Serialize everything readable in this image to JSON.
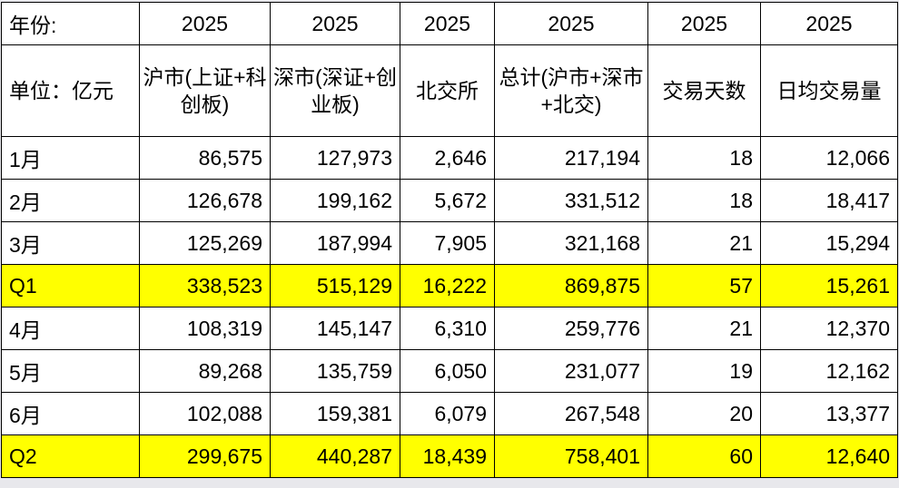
{
  "header": {
    "year_label": "年份:",
    "years": [
      "2025",
      "2025",
      "2025",
      "2025",
      "2025",
      "2025"
    ],
    "unit_label": "单位：亿元",
    "columns": [
      "沪市(上证+科创板)",
      "深市(深证+创业板)",
      "北交所",
      "总计(沪市+深市+北交)",
      "交易天数",
      "日均交易量"
    ]
  },
  "rows": [
    {
      "label": "1月",
      "values": [
        "86,575",
        "127,973",
        "2,646",
        "217,194",
        "18",
        "12,066"
      ],
      "highlight": false
    },
    {
      "label": "2月",
      "values": [
        "126,678",
        "199,162",
        "5,672",
        "331,512",
        "18",
        "18,417"
      ],
      "highlight": false
    },
    {
      "label": "3月",
      "values": [
        "125,269",
        "187,994",
        "7,905",
        "321,168",
        "21",
        "15,294"
      ],
      "highlight": false
    },
    {
      "label": "Q1",
      "values": [
        "338,523",
        "515,129",
        "16,222",
        "869,875",
        "57",
        "15,261"
      ],
      "highlight": true
    },
    {
      "label": "4月",
      "values": [
        "108,319",
        "145,147",
        "6,310",
        "259,776",
        "21",
        "12,370"
      ],
      "highlight": false
    },
    {
      "label": "5月",
      "values": [
        "89,268",
        "135,759",
        "6,050",
        "231,077",
        "19",
        "12,162"
      ],
      "highlight": false
    },
    {
      "label": "6月",
      "values": [
        "102,088",
        "159,381",
        "6,079",
        "267,548",
        "20",
        "13,377"
      ],
      "highlight": false
    },
    {
      "label": "Q2",
      "values": [
        "299,675",
        "440,287",
        "18,439",
        "758,401",
        "60",
        "12,640"
      ],
      "highlight": true
    }
  ],
  "colors": {
    "highlight": "#ffff00",
    "border": "#000000"
  }
}
